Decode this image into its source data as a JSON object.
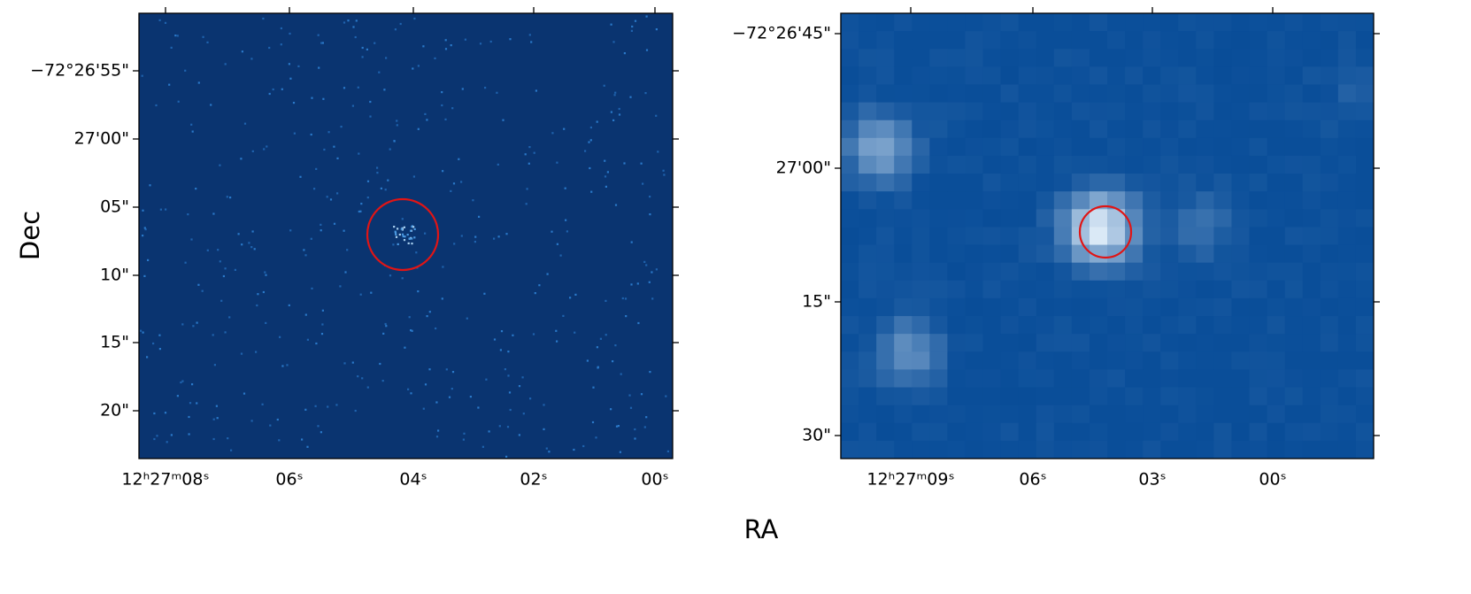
{
  "figure": {
    "x_axis_label": "RA",
    "y_axis_label": "Dec",
    "panels": [
      {
        "y_tick_labels": [
          "−72°26'55\"",
          "27'00\"",
          "05\"",
          "10\"",
          "15\"",
          "20\""
        ],
        "x_tick_labels": [
          "12ʰ27ᵐ08ˢ",
          "06ˢ",
          "04ˢ",
          "02ˢ",
          "00ˢ"
        ]
      },
      {
        "y_tick_labels": [
          "−72°26'45\"",
          "27'00\"",
          "15\"",
          "30\""
        ],
        "x_tick_labels": [
          "12ʰ27ᵐ09ˢ",
          "06ˢ",
          "03ˢ",
          "00ˢ"
        ]
      }
    ]
  }
}
